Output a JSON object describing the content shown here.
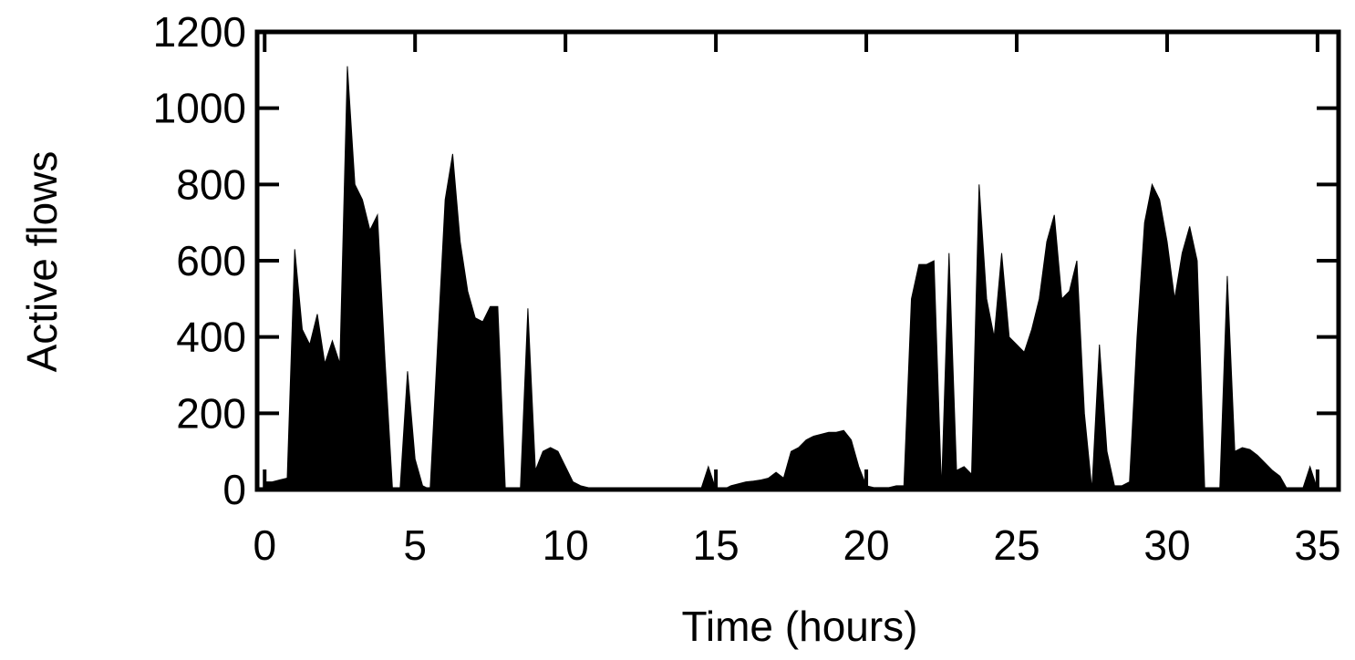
{
  "chart_data": {
    "type": "area",
    "xlabel": "Time (hours)",
    "ylabel": "Active flows",
    "color": "#000000",
    "x": [
      0,
      0.25,
      0.5,
      0.75,
      1,
      1.25,
      1.5,
      1.75,
      2,
      2.25,
      2.5,
      2.75,
      3,
      3.25,
      3.5,
      3.75,
      4,
      4.25,
      4.5,
      4.75,
      5,
      5.25,
      5.5,
      5.75,
      6,
      6.25,
      6.5,
      6.75,
      7,
      7.25,
      7.5,
      7.75,
      8,
      8.25,
      8.5,
      8.75,
      9,
      9.25,
      9.5,
      9.75,
      10,
      10.25,
      10.5,
      10.75,
      11,
      11.25,
      11.5,
      11.75,
      12,
      12.25,
      12.5,
      12.75,
      13,
      13.25,
      13.5,
      13.75,
      14,
      14.25,
      14.5,
      14.75,
      15,
      15.25,
      15.5,
      15.75,
      16,
      16.25,
      16.5,
      16.75,
      17,
      17.25,
      17.5,
      17.75,
      18,
      18.25,
      18.5,
      18.75,
      19,
      19.25,
      19.5,
      19.75,
      20,
      20.25,
      20.5,
      20.75,
      21,
      21.25,
      21.5,
      21.75,
      22,
      22.25,
      22.5,
      22.75,
      23,
      23.25,
      23.5,
      23.75,
      24,
      24.25,
      24.5,
      24.75,
      25,
      25.25,
      25.5,
      25.75,
      26,
      26.25,
      26.5,
      26.75,
      27,
      27.25,
      27.5,
      27.75,
      28,
      28.25,
      28.5,
      28.75,
      29,
      29.25,
      29.5,
      29.75,
      30,
      30.25,
      30.5,
      30.75,
      31,
      31.25,
      31.5,
      31.75,
      32,
      32.25,
      32.5,
      32.75,
      33,
      33.25,
      33.5,
      33.75,
      34,
      34.25,
      34.5,
      34.75,
      35
    ],
    "values": [
      20,
      20,
      25,
      30,
      630,
      420,
      380,
      460,
      330,
      390,
      330,
      1110,
      800,
      760,
      680,
      720,
      340,
      0,
      0,
      310,
      80,
      10,
      0,
      380,
      760,
      880,
      650,
      520,
      450,
      440,
      480,
      480,
      0,
      0,
      0,
      475,
      50,
      100,
      110,
      100,
      60,
      20,
      10,
      5,
      0,
      0,
      0,
      0,
      0,
      0,
      0,
      0,
      0,
      0,
      0,
      0,
      0,
      0,
      0,
      60,
      0,
      0,
      10,
      15,
      20,
      22,
      25,
      30,
      45,
      30,
      100,
      110,
      130,
      140,
      145,
      150,
      150,
      155,
      130,
      60,
      10,
      5,
      5,
      5,
      10,
      10,
      500,
      590,
      590,
      600,
      0,
      620,
      50,
      60,
      40,
      800,
      500,
      400,
      620,
      400,
      380,
      360,
      420,
      500,
      650,
      720,
      500,
      520,
      600,
      200,
      0,
      380,
      100,
      10,
      10,
      20,
      400,
      700,
      800,
      760,
      650,
      500,
      620,
      690,
      600,
      0,
      0,
      0,
      560,
      100,
      110,
      105,
      90,
      70,
      50,
      35,
      0,
      0,
      0,
      60,
      0
    ],
    "xlim": [
      -0.25,
      35.7
    ],
    "ylim": [
      0,
      1200
    ],
    "xticks": [
      0,
      5,
      10,
      15,
      20,
      25,
      30,
      35
    ],
    "yticks": [
      0,
      200,
      400,
      600,
      800,
      1000,
      1200
    ]
  }
}
